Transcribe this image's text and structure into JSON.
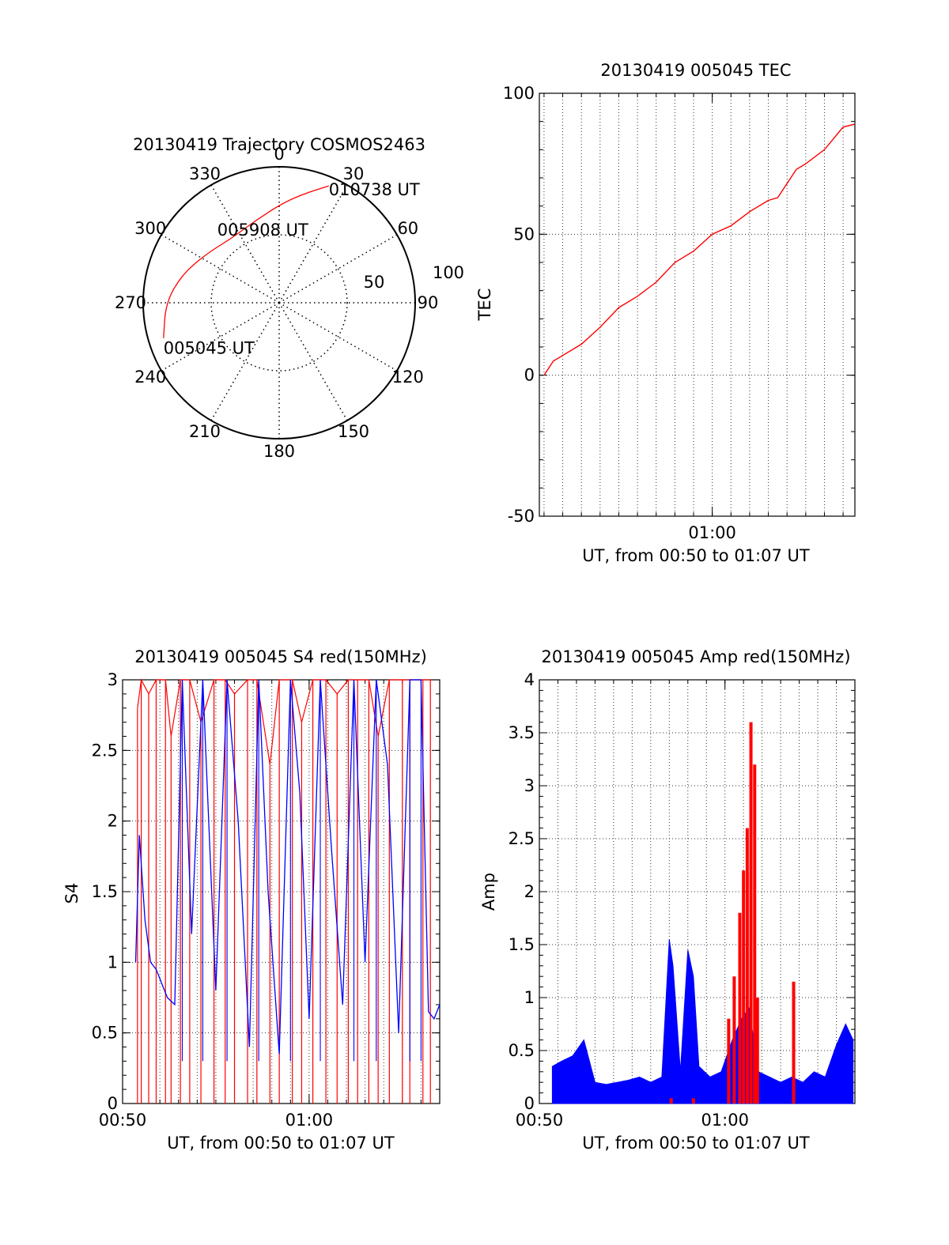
{
  "chart_data": [
    {
      "type": "polar",
      "title": "20130419 Trajectory COSMOS2463",
      "azimuth_labels": [
        "0",
        "30",
        "60",
        "90",
        "120",
        "150",
        "180",
        "210",
        "240",
        "270",
        "300",
        "330"
      ],
      "radial_labels": [
        "50",
        "100"
      ],
      "trajectory": {
        "color": "#ff0000",
        "points": [
          {
            "az": 253,
            "zd": 80
          },
          {
            "az": 270,
            "zd": 75
          },
          {
            "az": 286,
            "zd": 67
          },
          {
            "az": 304,
            "zd": 58
          },
          {
            "az": 324,
            "zd": 53
          },
          {
            "az": 345,
            "zd": 57
          },
          {
            "az": 362,
            "zd": 66
          },
          {
            "az": 374,
            "zd": 75
          },
          {
            "az": 383,
            "zd": 84
          }
        ],
        "labels": [
          {
            "text": "005045 UT",
            "az": 253,
            "zd": 80
          },
          {
            "text": "005908 UT",
            "az": 345,
            "zd": 57
          },
          {
            "text": "010738 UT",
            "az": 383,
            "zd": 84
          }
        ]
      }
    },
    {
      "type": "line",
      "title": "20130419 005045 TEC",
      "xlabel": "UT, from 00:50 to 01:07 UT",
      "ylabel": "TEC",
      "xlim": [
        50.75,
        67.63
      ],
      "ylim": [
        -50,
        100
      ],
      "x_ticks": [
        {
          "value": 60,
          "label": "01:00"
        }
      ],
      "y_ticks": [
        -50,
        0,
        50,
        100
      ],
      "grid": true,
      "series": [
        {
          "color": "#ff0000",
          "x": [
            51.0,
            51.5,
            52.0,
            53.0,
            54.0,
            55.0,
            56.0,
            57.0,
            58.0,
            59.0,
            60.0,
            61.0,
            62.0,
            63.0,
            63.5,
            64.0,
            64.5,
            65.0,
            66.0,
            67.0,
            67.6
          ],
          "y": [
            0,
            5,
            7,
            11,
            17,
            24,
            28,
            33,
            40,
            44,
            50,
            53,
            58,
            62,
            63,
            68,
            73,
            75,
            80,
            88,
            89
          ]
        }
      ]
    },
    {
      "type": "line",
      "title": "20130419 005045 S4 red(150MHz)",
      "xlabel": "UT, from 00:50 to 01:07 UT",
      "ylabel": "S4",
      "xlim": [
        50,
        67
      ],
      "ylim": [
        0,
        3
      ],
      "x_ticks": [
        {
          "value": 50,
          "label": "00:50"
        },
        {
          "value": 60,
          "label": "01:00"
        }
      ],
      "y_ticks": [
        0,
        0.5,
        1,
        1.5,
        2,
        2.5,
        3
      ],
      "grid": true,
      "series": [
        {
          "color": "#ff0000",
          "note_type": "spikes",
          "x": [
            50.8,
            51.0,
            51.4,
            51.8,
            52.3,
            52.6,
            53.1,
            53.6,
            54.2,
            54.9,
            55.5,
            56.0,
            56.7,
            57.2,
            57.9,
            58.4,
            59.1,
            59.6,
            60.2,
            60.9,
            61.5,
            62.1,
            62.6,
            63.2,
            63.7,
            64.3,
            65.0,
            65.4,
            66.1,
            66.5
          ],
          "y": [
            2.8,
            3.0,
            2.9,
            3.0,
            3.0,
            2.6,
            3.0,
            3.0,
            2.7,
            3.0,
            3.0,
            2.9,
            3.0,
            3.0,
            2.4,
            3.0,
            3.0,
            2.7,
            3.0,
            3.0,
            2.9,
            3.0,
            3.0,
            3.0,
            2.6,
            3.0,
            3.0,
            3.0,
            3.0,
            3.0
          ]
        },
        {
          "color": "#0000ff",
          "note_type": "noisy",
          "x": [
            50.7,
            50.9,
            51.2,
            51.5,
            51.8,
            52.1,
            52.4,
            52.8,
            53.2,
            53.7,
            54.3,
            55.0,
            55.6,
            56.2,
            56.8,
            57.3,
            57.8,
            58.4,
            59.0,
            59.5,
            60.0,
            60.6,
            61.2,
            61.8,
            62.4,
            63.0,
            63.6,
            64.2,
            64.8,
            65.4,
            66.0,
            66.4,
            66.7,
            67.0
          ],
          "y": [
            1.0,
            1.9,
            1.3,
            1.0,
            0.95,
            0.85,
            0.75,
            0.7,
            3.0,
            1.2,
            3.0,
            0.8,
            3.0,
            2.0,
            0.4,
            3.0,
            1.5,
            0.35,
            3.0,
            2.2,
            0.6,
            3.0,
            1.8,
            0.7,
            3.0,
            1.0,
            3.0,
            2.4,
            0.5,
            3.0,
            3.0,
            0.65,
            0.6,
            0.7
          ]
        }
      ]
    },
    {
      "type": "line",
      "title": "20130419 005045 Amp red(150MHz)",
      "xlabel": "UT, from 00:50 to 01:07 UT",
      "ylabel": "Amp",
      "xlim": [
        50,
        67
      ],
      "ylim": [
        0,
        4
      ],
      "x_ticks": [
        {
          "value": 50,
          "label": "00:50"
        },
        {
          "value": 60,
          "label": "01:00"
        }
      ],
      "y_ticks": [
        0,
        0.5,
        1,
        1.5,
        2,
        2.5,
        3,
        3.5,
        4
      ],
      "grid": true,
      "series": [
        {
          "color": "#0000ff",
          "note_type": "bars",
          "x": [
            50.7,
            51.2,
            51.8,
            52.4,
            53.0,
            53.6,
            54.2,
            54.8,
            55.4,
            56.0,
            56.6,
            57.0,
            57.2,
            57.6,
            58.0,
            58.3,
            58.6,
            59.2,
            59.8,
            60.4,
            60.9,
            61.3,
            61.8,
            62.4,
            63.0,
            63.6,
            64.2,
            64.8,
            65.4,
            66.0,
            66.5,
            66.9
          ],
          "y": [
            0.35,
            0.4,
            0.45,
            0.6,
            0.2,
            0.18,
            0.2,
            0.22,
            0.25,
            0.2,
            0.25,
            1.55,
            1.3,
            0.3,
            1.45,
            1.2,
            0.35,
            0.25,
            0.3,
            0.6,
            0.8,
            0.9,
            0.3,
            0.25,
            0.2,
            0.25,
            0.2,
            0.3,
            0.25,
            0.55,
            0.75,
            0.6
          ]
        },
        {
          "color": "#ff0000",
          "note_type": "bars",
          "x": [
            57.1,
            58.3,
            60.2,
            60.5,
            60.8,
            61.0,
            61.2,
            61.4,
            61.6,
            61.75,
            63.7
          ],
          "y": [
            0.05,
            0.05,
            0.8,
            1.2,
            1.8,
            2.2,
            2.6,
            3.6,
            3.2,
            1.0,
            1.15
          ]
        }
      ]
    }
  ]
}
